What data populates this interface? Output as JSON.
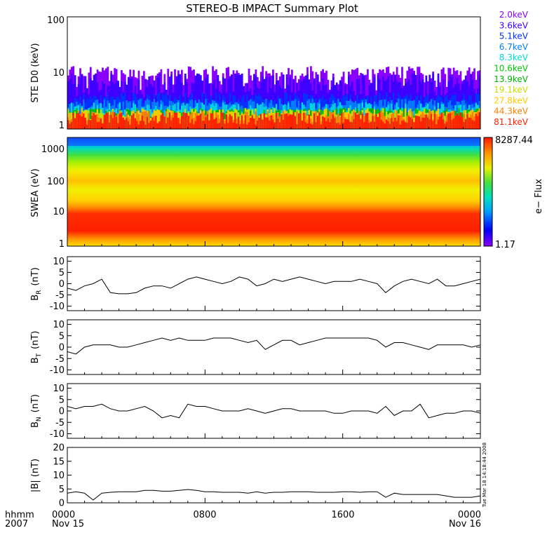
{
  "title": "STEREO-B IMPACT Summary Plot",
  "footer": {
    "time_label": "hhmm",
    "year_label": "2007",
    "start_date": "Nov 15",
    "end_date": "Nov 16"
  },
  "stamp": "Tue Mar 18 14:18:44 2008",
  "colors": {
    "trace": "#000000",
    "ste_channels": [
      "#8a00ff",
      "#3b00ff",
      "#0033ff",
      "#0080ff",
      "#00d8e0",
      "#00c800",
      "#00b400",
      "#c8e000",
      "#ffc800",
      "#ff8000",
      "#ff2000"
    ]
  },
  "chart_data": [
    {
      "type": "bar",
      "panel": "ste",
      "ylabel": "STE D0 (keV)",
      "yscale": "log",
      "ylim": [
        1,
        100
      ],
      "yticks": [
        "100",
        "10",
        "1"
      ],
      "legend_position": "right",
      "series": [
        {
          "name": "2.0keV",
          "typical": 6.5
        },
        {
          "name": "3.6keV",
          "typical": 4.8
        },
        {
          "name": "5.1keV",
          "typical": 3.6
        },
        {
          "name": "6.7keV",
          "typical": 2.8
        },
        {
          "name": "8.3keV",
          "typical": 2.4
        },
        {
          "name": "10.6keV",
          "typical": 1.9
        },
        {
          "name": "13.9keV",
          "typical": 1.9
        },
        {
          "name": "19.1keV",
          "typical": 1.9
        },
        {
          "name": "27.8keV",
          "typical": 1.8
        },
        {
          "name": "44.3keV",
          "typical": 1.7
        },
        {
          "name": "81.1keV",
          "typical": 1.6
        }
      ]
    },
    {
      "type": "heatmap",
      "panel": "swea",
      "ylabel": "SWEA (eV)",
      "yscale": "log",
      "ylim": [
        1,
        2000
      ],
      "yticks": [
        "1000",
        "100",
        "10",
        "1"
      ],
      "colorbar": {
        "label": "e− Flux",
        "max": "8287.44",
        "min": "1.17"
      }
    },
    {
      "type": "line",
      "panel": "br",
      "ylabel": "B",
      "ylabel_sub": "R",
      "ylabel_unit": "(nT)",
      "ylim": [
        -12,
        12
      ],
      "yticks": [
        10,
        5,
        0,
        -5,
        -10
      ],
      "x_hours": [
        0,
        0.5,
        1,
        1.5,
        2,
        2.5,
        3,
        3.5,
        4,
        4.5,
        5,
        5.5,
        6,
        6.5,
        7,
        7.5,
        8,
        8.5,
        9,
        9.5,
        10,
        10.5,
        11,
        11.5,
        12,
        12.5,
        13,
        13.5,
        14,
        14.5,
        15,
        15.5,
        16,
        16.5,
        17,
        17.5,
        18,
        18.5,
        19,
        19.5,
        20,
        20.5,
        21,
        21.5,
        22,
        22.5,
        23,
        23.5,
        24
      ],
      "values": [
        -2,
        -3,
        -1,
        0,
        2,
        -4,
        -4.5,
        -4.5,
        -4,
        -2,
        -1,
        -1,
        -2,
        0,
        2,
        3,
        2,
        1,
        0,
        1,
        3,
        2,
        -1,
        0,
        2,
        1,
        2,
        3,
        2,
        1,
        0,
        1,
        1,
        1,
        2,
        1,
        0,
        -4,
        -1,
        1,
        2,
        1,
        0,
        2,
        -1,
        -1,
        0,
        1,
        2
      ]
    },
    {
      "type": "line",
      "panel": "bt",
      "ylabel": "B",
      "ylabel_sub": "T",
      "ylabel_unit": "(nT)",
      "ylim": [
        -12,
        12
      ],
      "yticks": [
        10,
        5,
        0,
        -5,
        -10
      ],
      "x_hours": [
        0,
        0.5,
        1,
        1.5,
        2,
        2.5,
        3,
        3.5,
        4,
        4.5,
        5,
        5.5,
        6,
        6.5,
        7,
        7.5,
        8,
        8.5,
        9,
        9.5,
        10,
        10.5,
        11,
        11.5,
        12,
        12.5,
        13,
        13.5,
        14,
        14.5,
        15,
        15.5,
        16,
        16.5,
        17,
        17.5,
        18,
        18.5,
        19,
        19.5,
        20,
        20.5,
        21,
        21.5,
        22,
        22.5,
        23,
        23.5,
        24
      ],
      "values": [
        -2,
        -3,
        0,
        1,
        1,
        1,
        0,
        0,
        1,
        2,
        3,
        4,
        3,
        4,
        3,
        3,
        3,
        4,
        4,
        4,
        3,
        2,
        3,
        -1,
        1,
        3,
        3,
        1,
        2,
        3,
        4,
        4,
        4,
        4,
        4,
        4,
        3,
        0,
        2,
        2,
        1,
        0,
        -1,
        1,
        1,
        1,
        1,
        0,
        1
      ]
    },
    {
      "type": "line",
      "panel": "bn",
      "ylabel": "B",
      "ylabel_sub": "N",
      "ylabel_unit": "(nT)",
      "ylim": [
        -12,
        12
      ],
      "yticks": [
        10,
        5,
        0,
        -5,
        -10
      ],
      "x_hours": [
        0,
        0.5,
        1,
        1.5,
        2,
        2.5,
        3,
        3.5,
        4,
        4.5,
        5,
        5.5,
        6,
        6.5,
        7,
        7.5,
        8,
        8.5,
        9,
        9.5,
        10,
        10.5,
        11,
        11.5,
        12,
        12.5,
        13,
        13.5,
        14,
        14.5,
        15,
        15.5,
        16,
        16.5,
        17,
        17.5,
        18,
        18.5,
        19,
        19.5,
        20,
        20.5,
        21,
        21.5,
        22,
        22.5,
        23,
        23.5,
        24
      ],
      "values": [
        2,
        1,
        2,
        2,
        3,
        1,
        0,
        0,
        1,
        2,
        0,
        -3,
        -2,
        -3,
        3,
        2,
        2,
        1,
        0,
        0,
        0,
        1,
        0,
        -1,
        0,
        1,
        1,
        0,
        0,
        0,
        0,
        -1,
        -1,
        0,
        0,
        0,
        -1,
        2,
        -2,
        0,
        0,
        3,
        -3,
        -2,
        -1,
        -1,
        0,
        0,
        -1
      ]
    },
    {
      "type": "line",
      "panel": "bmag",
      "ylabel": "|B| (nT)",
      "ylim": [
        0,
        20
      ],
      "yticks": [
        20,
        15,
        10,
        5,
        0
      ],
      "x_hours": [
        0,
        0.5,
        1,
        1.5,
        2,
        2.5,
        3,
        3.5,
        4,
        4.5,
        5,
        5.5,
        6,
        6.5,
        7,
        7.5,
        8,
        8.5,
        9,
        9.5,
        10,
        10.5,
        11,
        11.5,
        12,
        12.5,
        13,
        13.5,
        14,
        14.5,
        15,
        15.5,
        16,
        16.5,
        17,
        17.5,
        18,
        18.5,
        19,
        19.5,
        20,
        20.5,
        21,
        21.5,
        22,
        22.5,
        23,
        23.5,
        24
      ],
      "values": [
        3.5,
        4,
        3.5,
        1,
        3.5,
        3.8,
        4,
        4,
        4,
        4.5,
        4.5,
        4.2,
        4.2,
        4.5,
        4.8,
        4.5,
        4,
        4,
        3.8,
        3.8,
        3.8,
        3.5,
        4,
        3.5,
        3.8,
        3.8,
        4,
        4,
        4,
        3.8,
        3.8,
        3.8,
        4,
        4,
        3.8,
        4,
        4,
        2,
        3.5,
        3,
        3,
        3,
        3,
        3,
        2.5,
        2,
        2,
        2,
        2.5
      ]
    },
    {
      "type": "axis",
      "panel": "time",
      "x_range_hours": [
        0,
        24
      ],
      "ticks": [
        {
          "hour": 0,
          "label": "0000"
        },
        {
          "hour": 8,
          "label": "0800"
        },
        {
          "hour": 16,
          "label": "1600"
        },
        {
          "hour": 24,
          "label": "0000"
        }
      ]
    }
  ]
}
